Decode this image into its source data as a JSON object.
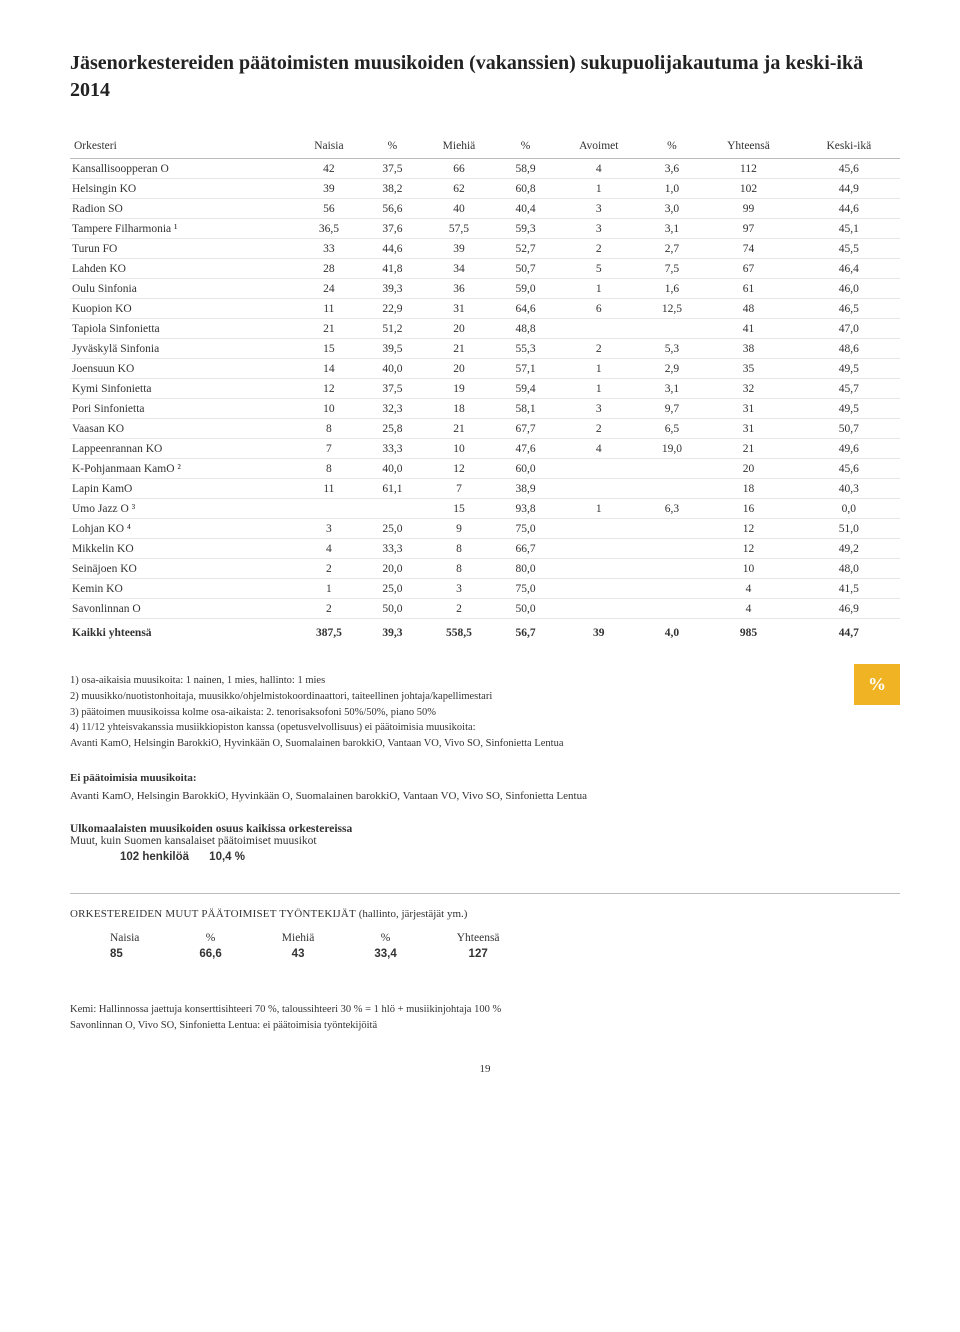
{
  "title": "Jäsenorkestereiden päätoimisten muusikoiden (vakanssien) sukupuolijakautuma ja keski-ikä 2014",
  "badge": "%",
  "main_table": {
    "columns": [
      "Orkesteri",
      "Naisia",
      "%",
      "Miehiä",
      "%",
      "Avoimet",
      "%",
      "Yhteensä",
      "Keski-ikä"
    ],
    "rows": [
      [
        "Kansallisoopperan O",
        "42",
        "37,5",
        "66",
        "58,9",
        "4",
        "3,6",
        "112",
        "45,6"
      ],
      [
        "Helsingin KO",
        "39",
        "38,2",
        "62",
        "60,8",
        "1",
        "1,0",
        "102",
        "44,9"
      ],
      [
        "Radion SO",
        "56",
        "56,6",
        "40",
        "40,4",
        "3",
        "3,0",
        "99",
        "44,6"
      ],
      [
        "Tampere Filharmonia ¹",
        "36,5",
        "37,6",
        "57,5",
        "59,3",
        "3",
        "3,1",
        "97",
        "45,1"
      ],
      [
        "Turun FO",
        "33",
        "44,6",
        "39",
        "52,7",
        "2",
        "2,7",
        "74",
        "45,5"
      ],
      [
        "Lahden KO",
        "28",
        "41,8",
        "34",
        "50,7",
        "5",
        "7,5",
        "67",
        "46,4"
      ],
      [
        "Oulu Sinfonia",
        "24",
        "39,3",
        "36",
        "59,0",
        "1",
        "1,6",
        "61",
        "46,0"
      ],
      [
        "Kuopion KO",
        "11",
        "22,9",
        "31",
        "64,6",
        "6",
        "12,5",
        "48",
        "46,5"
      ],
      [
        "Tapiola Sinfonietta",
        "21",
        "51,2",
        "20",
        "48,8",
        "",
        "",
        "41",
        "47,0"
      ],
      [
        "Jyväskylä Sinfonia",
        "15",
        "39,5",
        "21",
        "55,3",
        "2",
        "5,3",
        "38",
        "48,6"
      ],
      [
        "Joensuun KO",
        "14",
        "40,0",
        "20",
        "57,1",
        "1",
        "2,9",
        "35",
        "49,5"
      ],
      [
        "Kymi Sinfonietta",
        "12",
        "37,5",
        "19",
        "59,4",
        "1",
        "3,1",
        "32",
        "45,7"
      ],
      [
        "Pori Sinfonietta",
        "10",
        "32,3",
        "18",
        "58,1",
        "3",
        "9,7",
        "31",
        "49,5"
      ],
      [
        "Vaasan KO",
        "8",
        "25,8",
        "21",
        "67,7",
        "2",
        "6,5",
        "31",
        "50,7"
      ],
      [
        "Lappeenrannan KO",
        "7",
        "33,3",
        "10",
        "47,6",
        "4",
        "19,0",
        "21",
        "49,6"
      ],
      [
        "K-Pohjanmaan KamO ²",
        "8",
        "40,0",
        "12",
        "60,0",
        "",
        "",
        "20",
        "45,6"
      ],
      [
        "Lapin KamO",
        "11",
        "61,1",
        "7",
        "38,9",
        "",
        "",
        "18",
        "40,3"
      ],
      [
        "Umo Jazz O ³",
        "",
        "",
        "15",
        "93,8",
        "1",
        "6,3",
        "16",
        "0,0"
      ],
      [
        "Lohjan KO ⁴",
        "3",
        "25,0",
        "9",
        "75,0",
        "",
        "",
        "12",
        "51,0"
      ],
      [
        "Mikkelin KO",
        "4",
        "33,3",
        "8",
        "66,7",
        "",
        "",
        "12",
        "49,2"
      ],
      [
        "Seinäjoen KO",
        "2",
        "20,0",
        "8",
        "80,0",
        "",
        "",
        "10",
        "48,0"
      ],
      [
        "Kemin KO",
        "1",
        "25,0",
        "3",
        "75,0",
        "",
        "",
        "4",
        "41,5"
      ],
      [
        "Savonlinnan O",
        "2",
        "50,0",
        "2",
        "50,0",
        "",
        "",
        "4",
        "46,9"
      ]
    ],
    "total": [
      "Kaikki yhteensä",
      "387,5",
      "39,3",
      "558,5",
      "56,7",
      "39",
      "4,0",
      "985",
      "44,7"
    ]
  },
  "notes": [
    "1)  osa-aikaisia muusikoita: 1 nainen, 1 mies, hallinto: 1 mies",
    "2)  muusikko/nuotistonhoitaja, muusikko/ohjelmistokoordinaattori, taiteellinen johtaja/kapellimestari",
    "3)  päätoimen muusikoissa kolme osa-aikaista: 2. tenorisaksofoni 50%/50%, piano 50%",
    "4)  11/12 yhteisvakanssia musiikkiopiston kanssa (opetusvelvollisuus) ei päätoimisia muusikoita:",
    "     Avanti KamO, Helsingin BarokkiO, Hyvinkään O, Suomalainen barokkiO, Vantaan VO, Vivo SO, Sinfonietta Lentua"
  ],
  "no_fulltime": {
    "label": "Ei päätoimisia muusikoita:",
    "text": "Avanti KamO, Helsingin BarokkiO, Hyvinkään O, Suomalainen barokkiO, Vantaan VO, Vivo SO, Sinfonietta Lentua"
  },
  "foreign": {
    "title": "Ulkomaalaisten muusikoiden osuus kaikissa orkestereissa",
    "subtitle": "Muut, kuin Suomen kansalaiset päätoimiset muusikot",
    "count": "102 henkilöä",
    "pct": "10,4 %"
  },
  "other_staff": {
    "heading_caps": "ORKESTEREIDEN MUUT PÄÄTOIMISET TYÖNTEKIJÄT",
    "heading_rest": " (hallinto, järjestäjät ym.)",
    "columns": [
      "Naisia",
      "%",
      "Miehiä",
      "%",
      "Yhteensä"
    ],
    "values": [
      "85",
      "66,6",
      "43",
      "33,4",
      "127"
    ]
  },
  "footnote": [
    "Kemi: Hallinnossa jaettuja konserttisihteeri 70 %, taloussihteeri 30 % = 1 hlö + musiikinjohtaja 100 %",
    "Savonlinnan O, Vivo SO, Sinfonietta Lentua: ei päätoimisia työntekijöitä"
  ],
  "page": "19"
}
